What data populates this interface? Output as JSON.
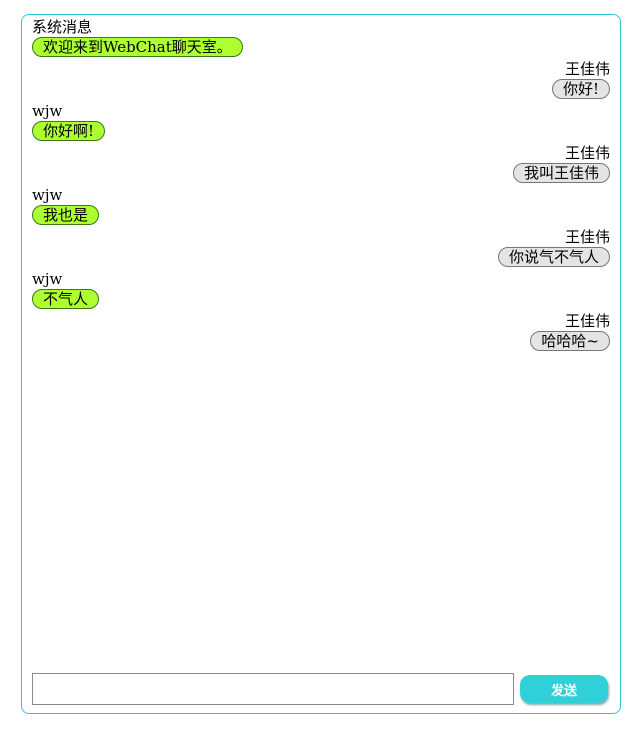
{
  "messages": [
    {
      "side": "left",
      "sender": "系统消息",
      "text": "欢迎来到WebChat聊天室。"
    },
    {
      "side": "right",
      "sender": "王佳伟",
      "text": "你好!"
    },
    {
      "side": "left",
      "sender": "wjw",
      "text": "你好啊!"
    },
    {
      "side": "right",
      "sender": "王佳伟",
      "text": "我叫王佳伟"
    },
    {
      "side": "left",
      "sender": "wjw",
      "text": "我也是"
    },
    {
      "side": "right",
      "sender": "王佳伟",
      "text": "你说气不气人"
    },
    {
      "side": "left",
      "sender": "wjw",
      "text": "不气人"
    },
    {
      "side": "right",
      "sender": "王佳伟",
      "text": "哈哈哈~"
    }
  ],
  "input": {
    "value": "",
    "placeholder": ""
  },
  "send_button": {
    "label": "发送"
  },
  "colors": {
    "border": "#2fc7d3",
    "left_bubble": "#adff2f",
    "right_bubble": "#e4e4e4",
    "send_button": "#2fd0d8"
  }
}
